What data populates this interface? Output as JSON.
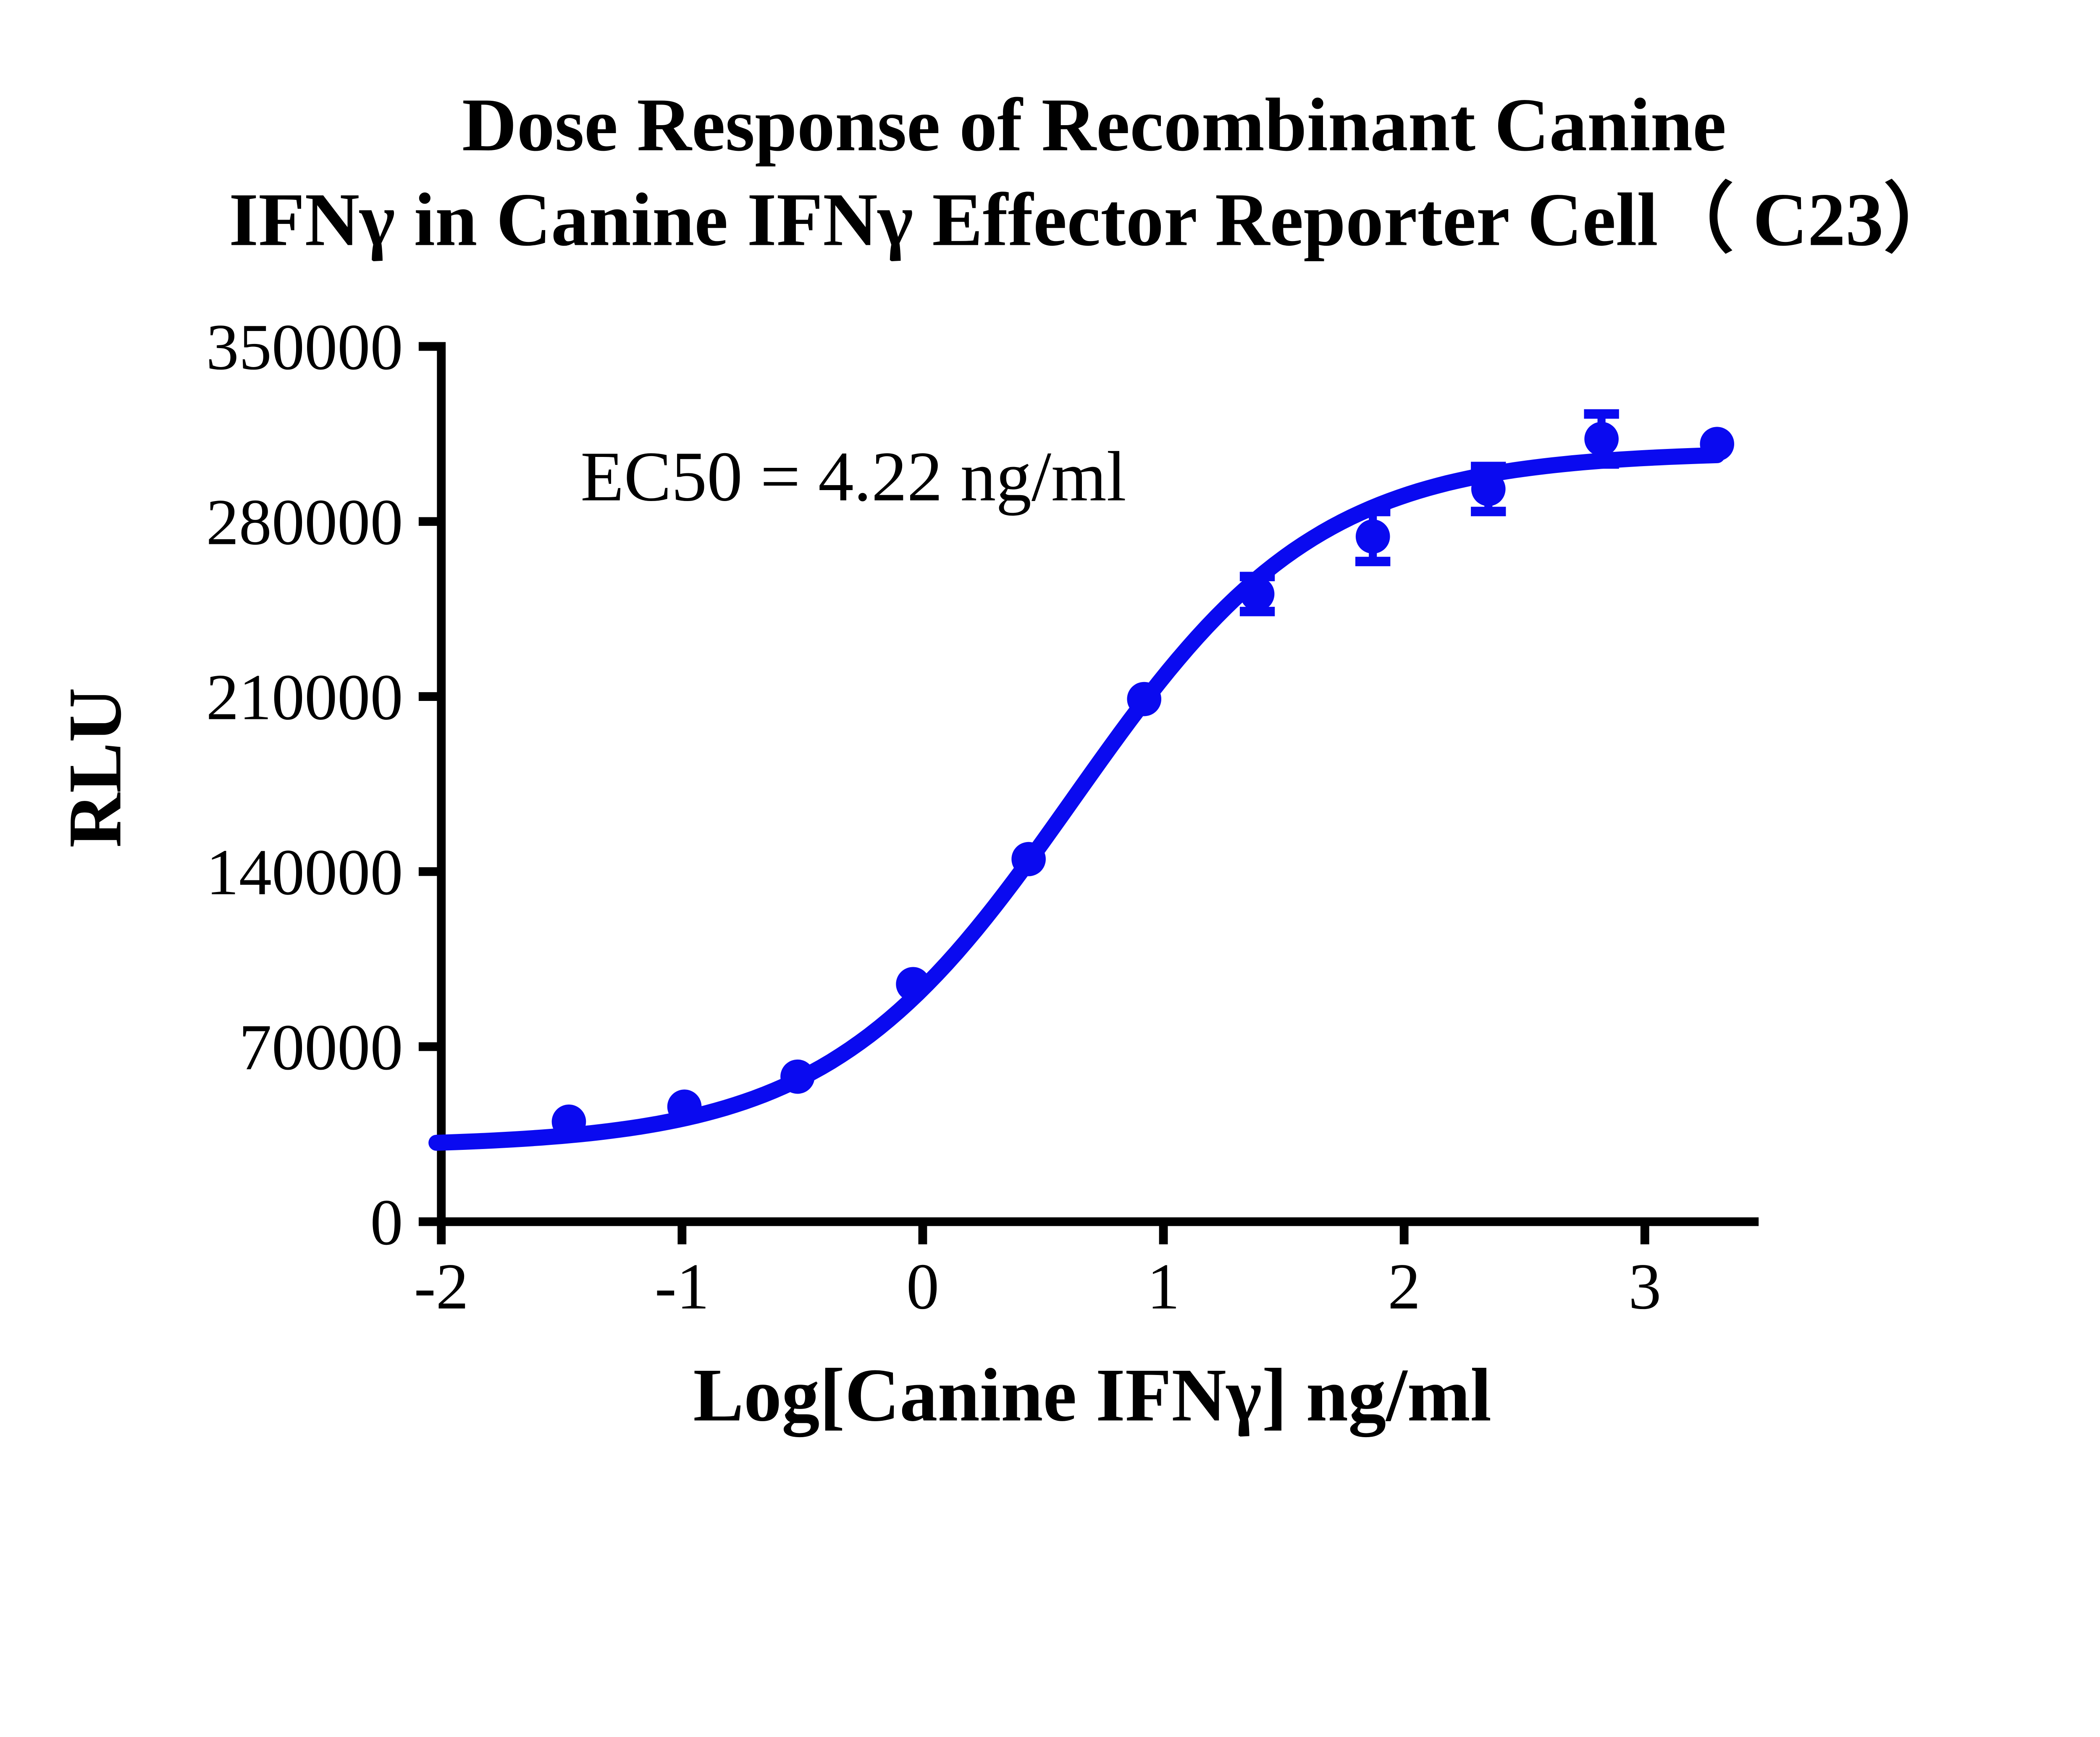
{
  "title": {
    "line1": "Dose Response of Recombinant Canine",
    "line2": "IFNγ in Canine IFNγ Effector Reporter Cell（ C23）"
  },
  "axes": {
    "y_title": "RLU",
    "x_title": "Log[Canine IFNγ] ng/ml"
  },
  "annotation": {
    "ec50_label": "EC50 = 4.22 ng/ml"
  },
  "colors": {
    "series": "#0A0AF0",
    "axis": "#000000",
    "background": "#FFFFFF"
  },
  "chart_data": {
    "type": "scatter",
    "title": "Dose Response of Recombinant Canine IFNγ in Canine IFNγ Effector Reporter Cell（ C23）",
    "xlabel": "Log[Canine IFNγ] ng/ml",
    "ylabel": "RLU",
    "annotation": "EC50 = 4.22 ng/ml",
    "grid": false,
    "legend": false,
    "x": [
      -1.47,
      -0.99,
      -0.52,
      -0.04,
      0.44,
      0.92,
      1.39,
      1.87,
      2.35,
      2.82,
      3.3
    ],
    "y": [
      40000,
      46000,
      58000,
      95000,
      145000,
      209000,
      251000,
      274000,
      293000,
      313000,
      311000
    ],
    "y_sem": [
      0,
      0,
      0,
      0,
      0,
      0,
      7000,
      10000,
      9000,
      10000,
      0
    ],
    "x_ticks": [
      -2,
      -1,
      0,
      1,
      2,
      3
    ],
    "x_tick_labels": [
      "-2",
      "-1",
      "0",
      "1",
      "2",
      "3"
    ],
    "y_ticks": [
      0,
      70000,
      140000,
      210000,
      280000,
      350000
    ],
    "y_tick_labels": [
      "0",
      "70000",
      "140000",
      "210000",
      "280000",
      "350000"
    ],
    "xlim": [
      -2,
      3.45
    ],
    "ylim": [
      0,
      350000
    ],
    "fit": {
      "model": "4PL",
      "ec50_ng_ml": 4.22,
      "log_ec50": 0.625,
      "hill": 0.85,
      "bottom": 30000,
      "top": 308000,
      "curve_x_start": -2.02,
      "curve_x_end": 3.3
    }
  }
}
